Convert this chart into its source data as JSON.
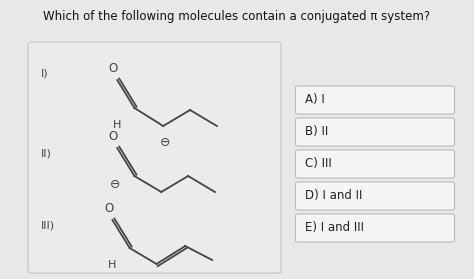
{
  "title": "Which of the following molecules contain a conjugated π system?",
  "title_fontsize": 8.5,
  "bg_color": "#e8e8e8",
  "panel_bg": "#ebebeb",
  "panel_edge": "#cccccc",
  "answer_choices": [
    "A) I",
    "B) II",
    "C) III",
    "D) I and II",
    "E) I and III"
  ],
  "answer_box_color": "#f5f5f5",
  "answer_box_edge": "#bbbbbb",
  "answer_text_color": "#222222",
  "line_color": "#444444",
  "label_color": "#444444",
  "lw": 1.3
}
